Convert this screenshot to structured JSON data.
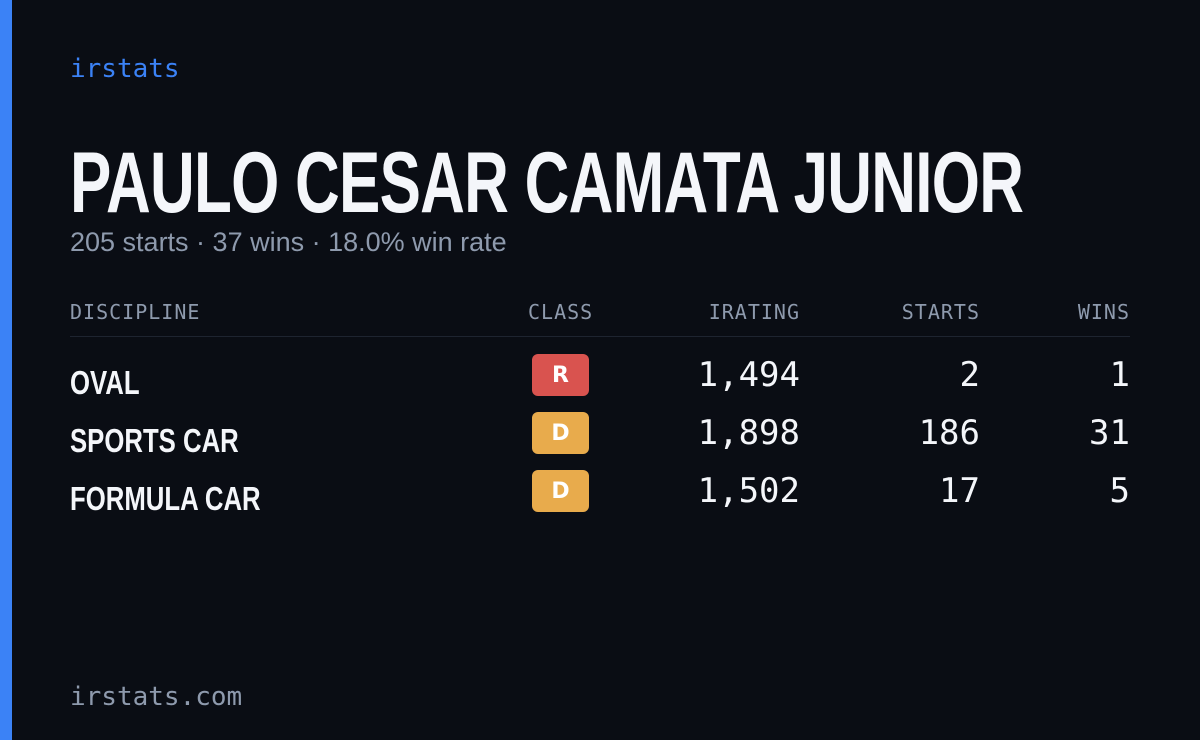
{
  "brand": "irstats",
  "header": {
    "name": "PAULO CESAR CAMATA JUNIOR",
    "summary": "205 starts · 37 wins · 18.0% win rate"
  },
  "table": {
    "columns": [
      "DISCIPLINE",
      "CLASS",
      "IRATING",
      "STARTS",
      "WINS"
    ],
    "rows": [
      {
        "discipline": "OVAL",
        "class": "R",
        "class_color": "#d9534f",
        "irating": "1,494",
        "starts": "2",
        "wins": "1"
      },
      {
        "discipline": "SPORTS CAR",
        "class": "D",
        "class_color": "#e8ab4c",
        "irating": "1,898",
        "starts": "186",
        "wins": "31"
      },
      {
        "discipline": "FORMULA CAR",
        "class": "D",
        "class_color": "#e8ab4c",
        "irating": "1,502",
        "starts": "17",
        "wins": "5"
      }
    ]
  },
  "footer": "irstats.com"
}
